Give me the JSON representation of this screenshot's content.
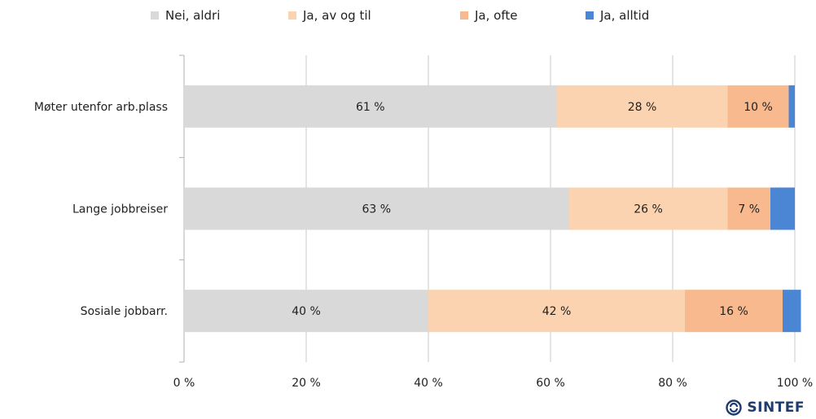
{
  "chart_data": {
    "type": "bar",
    "orientation": "horizontal",
    "stacked": true,
    "categories": [
      "Møter utenfor arb.plass",
      "Lange jobbreiser",
      "Sosiale jobbarr."
    ],
    "series": [
      {
        "name": "Nei, aldri",
        "color": "#d9d9d9",
        "values": [
          61,
          63,
          40
        ],
        "labels": [
          "61 %",
          "63 %",
          "40 %"
        ]
      },
      {
        "name": "Ja, av og til",
        "color": "#fbd3b0",
        "values": [
          28,
          26,
          42
        ],
        "labels": [
          "28 %",
          "26 %",
          "42 %"
        ]
      },
      {
        "name": "Ja, ofte",
        "color": "#f7b98d",
        "values": [
          10,
          7,
          16
        ],
        "labels": [
          "10 %",
          "7 %",
          "16 %"
        ]
      },
      {
        "name": "Ja, alltid",
        "color": "#4a86d4",
        "values": [
          1,
          4,
          3
        ],
        "labels": [
          "",
          "",
          ""
        ]
      }
    ],
    "xlim": [
      0,
      100
    ],
    "xticks": [
      "0 %",
      "20 %",
      "40 %",
      "60 %",
      "80 %",
      "100 %"
    ],
    "grid": true,
    "legend_position": "top"
  },
  "logo": {
    "text": "SINTEF"
  }
}
